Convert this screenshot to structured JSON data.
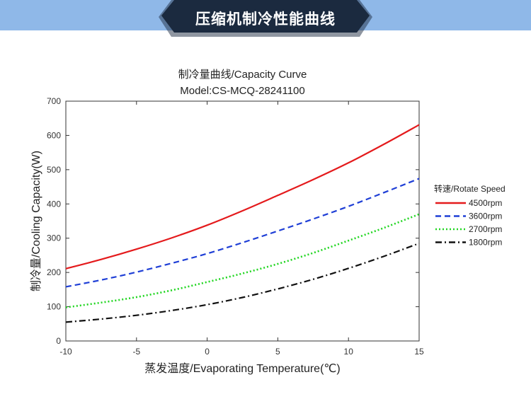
{
  "banner": {
    "title": "压缩机制冷性能曲线"
  },
  "chart_data": {
    "type": "line",
    "title": "制冷量曲线/Capacity Curve",
    "subtitle": "Model:CS-MCQ-28241100",
    "xlabel": "蒸发温度/Evaporating Temperature(℃)",
    "ylabel": "制冷量/Cooling Capacity(W)",
    "xlim": [
      -10,
      15
    ],
    "ylim": [
      0,
      700
    ],
    "xticks": [
      -10,
      -5,
      0,
      5,
      10,
      15
    ],
    "yticks": [
      0,
      100,
      200,
      300,
      400,
      500,
      600,
      700
    ],
    "grid": false,
    "legend": {
      "title": "转速/Rotate Speed",
      "placement": "right-outside"
    },
    "x": [
      -10,
      -7.5,
      -5,
      -2.5,
      0,
      2.5,
      5,
      7.5,
      10,
      12.5,
      15
    ],
    "series": [
      {
        "name": "4500rpm",
        "color": "#e41a1c",
        "dash": "solid",
        "values": [
          211,
          238,
          268,
          301,
          338,
          380,
          425,
          471,
          520,
          574,
          631
        ]
      },
      {
        "name": "3600rpm",
        "color": "#1f3fd6",
        "dash": "dashed",
        "values": [
          158,
          178,
          201,
          227,
          255,
          287,
          321,
          356,
          393,
          433,
          474
        ]
      },
      {
        "name": "2700rpm",
        "color": "#22d622",
        "dash": "dotted",
        "values": [
          98,
          112,
          128,
          148,
          172,
          197,
          225,
          257,
          293,
          330,
          370
        ]
      },
      {
        "name": "1800rpm",
        "color": "#111111",
        "dash": "dashdot",
        "values": [
          55,
          64,
          75,
          89,
          106,
          127,
          152,
          180,
          212,
          247,
          285
        ]
      }
    ]
  }
}
